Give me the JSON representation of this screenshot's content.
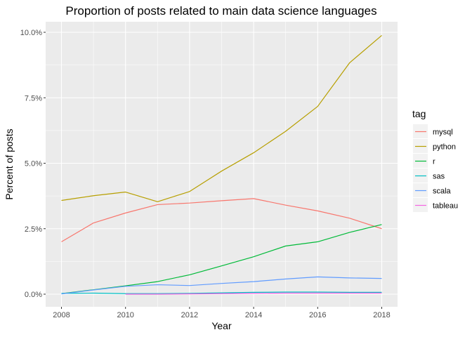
{
  "chart_data": {
    "type": "line",
    "title": "Proportion of posts related to main data science languages",
    "xlabel": "Year",
    "ylabel": "Percent of posts",
    "x_ticks": [
      "2008",
      "2010",
      "2012",
      "2014",
      "2016",
      "2018"
    ],
    "y_ticks": [
      "0.0%",
      "2.5%",
      "5.0%",
      "7.5%",
      "10.0%"
    ],
    "xlim": [
      2008,
      2018
    ],
    "ylim": [
      0,
      10
    ],
    "grid": true,
    "legend_title": "tag",
    "legend_position": "right",
    "series": [
      {
        "name": "mysql",
        "color": "#F8766D",
        "x": [
          2008,
          2009,
          2010,
          2011,
          2012,
          2013,
          2014,
          2015,
          2016,
          2017,
          2018
        ],
        "y": [
          2.0,
          2.72,
          3.1,
          3.42,
          3.48,
          3.57,
          3.65,
          3.4,
          3.18,
          2.9,
          2.5
        ]
      },
      {
        "name": "python",
        "color": "#B79F00",
        "x": [
          2008,
          2009,
          2010,
          2011,
          2012,
          2013,
          2014,
          2015,
          2016,
          2017,
          2018
        ],
        "y": [
          3.58,
          3.76,
          3.9,
          3.53,
          3.92,
          4.7,
          5.4,
          6.22,
          7.17,
          8.84,
          9.88
        ]
      },
      {
        "name": "r",
        "color": "#00BA38",
        "x": [
          2008,
          2009,
          2010,
          2011,
          2012,
          2013,
          2014,
          2015,
          2016,
          2017,
          2018
        ],
        "y": [
          0.02,
          0.17,
          0.32,
          0.48,
          0.74,
          1.08,
          1.43,
          1.84,
          2.0,
          2.36,
          2.66
        ]
      },
      {
        "name": "sas",
        "color": "#00BFC4",
        "x": [
          2008,
          2009,
          2010,
          2011,
          2012,
          2013,
          2014,
          2015,
          2016,
          2017,
          2018
        ],
        "y": [
          0.03,
          0.04,
          0.02,
          0.02,
          0.03,
          0.05,
          0.07,
          0.08,
          0.08,
          0.07,
          0.07
        ]
      },
      {
        "name": "scala",
        "color": "#619CFF",
        "x": [
          2008,
          2009,
          2010,
          2011,
          2012,
          2013,
          2014,
          2015,
          2016,
          2017,
          2018
        ],
        "y": [
          0.01,
          0.16,
          0.3,
          0.36,
          0.33,
          0.41,
          0.48,
          0.58,
          0.66,
          0.62,
          0.6
        ]
      },
      {
        "name": "tableau",
        "color": "#F564E3",
        "x": [
          2010,
          2011,
          2012,
          2013,
          2014,
          2015,
          2016,
          2017,
          2018
        ],
        "y": [
          0.0,
          0.0,
          0.01,
          0.02,
          0.03,
          0.04,
          0.04,
          0.04,
          0.04
        ]
      }
    ]
  }
}
